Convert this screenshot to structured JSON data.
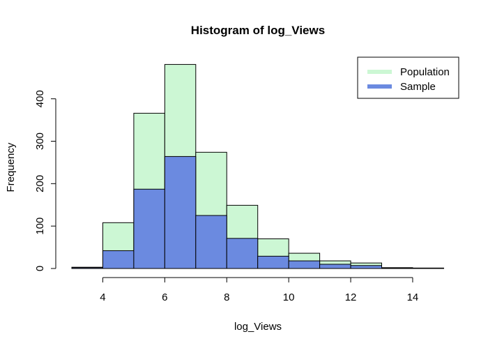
{
  "chart_data": {
    "type": "bar",
    "title": "Histogram of log_Views",
    "xlabel": "log_Views",
    "ylabel": "Frequency",
    "xlim": [
      3,
      15
    ],
    "ylim": [
      0,
      480
    ],
    "x_ticks": [
      4,
      6,
      8,
      10,
      12,
      14
    ],
    "y_ticks": [
      0,
      100,
      200,
      300,
      400
    ],
    "bin_edges": [
      3,
      4,
      5,
      6,
      7,
      8,
      9,
      10,
      11,
      12,
      13,
      14,
      15
    ],
    "series": [
      {
        "name": "Population",
        "color": "#ccf7d4",
        "values": [
          3,
          108,
          366,
          481,
          274,
          149,
          70,
          36,
          18,
          13,
          2,
          1
        ]
      },
      {
        "name": "Sample",
        "color": "#6b8ae0",
        "values": [
          2,
          42,
          187,
          264,
          125,
          71,
          29,
          18,
          10,
          7,
          1,
          1
        ]
      }
    ],
    "legend": {
      "position": "top-right",
      "entries": [
        "Population",
        "Sample"
      ]
    },
    "grid": false
  }
}
